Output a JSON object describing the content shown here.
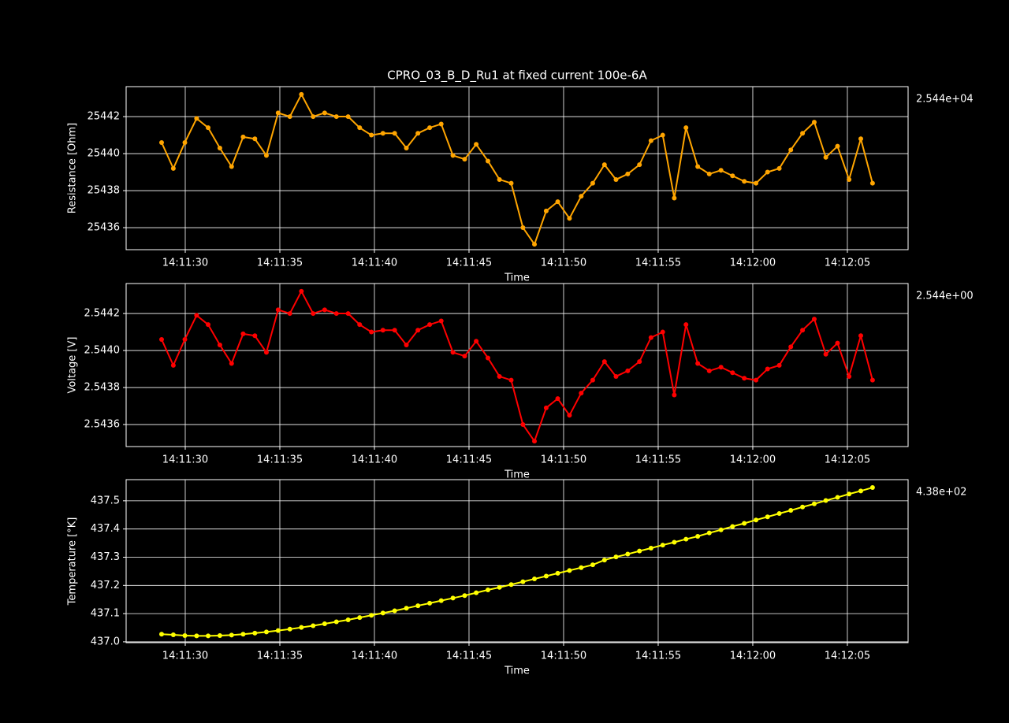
{
  "chart_data": [
    {
      "type": "line",
      "title": "CPRO_03_B_D_Ru1 at fixed current 100e-6A",
      "xlabel": "Time",
      "ylabel": "Resistance [Ohm]",
      "offset_text": "2.544e+04",
      "color": "#ffa500",
      "grid": true,
      "x": [
        51088.75,
        51089.37,
        51089.98,
        51090.6,
        51091.21,
        51091.83,
        51092.45,
        51093.06,
        51093.68,
        51094.29,
        51094.91,
        51095.53,
        51096.14,
        51096.76,
        51097.37,
        51097.99,
        51098.61,
        51099.22,
        51099.84,
        51100.45,
        51101.07,
        51101.69,
        51102.3,
        51102.92,
        51103.53,
        51104.15,
        51104.77,
        51105.38,
        51106.0,
        51106.61,
        51107.23,
        51107.85,
        51108.46,
        51109.08,
        51109.69,
        51110.31,
        51110.93,
        51111.54,
        51112.16,
        51112.77,
        51113.39,
        51114.01,
        51114.62,
        51115.24,
        51115.85,
        51116.47,
        51117.09,
        51117.7,
        51118.32,
        51118.93,
        51119.55,
        51120.17,
        51120.78,
        51121.4,
        51122.01,
        51122.63,
        51123.25,
        51123.86,
        51124.48,
        51125.09,
        51125.71,
        51126.33
      ],
      "values": [
        25440.6,
        25439.2,
        25440.6,
        25441.9,
        25441.4,
        25440.3,
        25439.3,
        25440.9,
        25440.8,
        25439.9,
        25442.2,
        25442.0,
        25443.2,
        25442.0,
        25442.2,
        25442.0,
        25442.0,
        25441.4,
        25441.0,
        25441.1,
        25441.1,
        25440.3,
        25441.1,
        25441.4,
        25441.6,
        25439.9,
        25439.7,
        25440.5,
        25439.6,
        25438.6,
        25438.4,
        25436.0,
        25435.1,
        25436.9,
        25437.4,
        25436.5,
        25437.7,
        25438.4,
        25439.4,
        25438.6,
        25438.9,
        25439.4,
        25440.7,
        25441.0,
        25437.6,
        25441.4,
        25439.3,
        25438.9,
        25439.1,
        25438.8,
        25438.5,
        25438.4,
        25439.0,
        25439.2,
        25440.2,
        25441.1,
        25441.7,
        25439.8,
        25440.4,
        25438.6,
        25440.8,
        25438.4
      ],
      "xlim": [
        51086.875,
        51128.21
      ],
      "xticks": [
        {
          "value": 51090,
          "label": "14:11:30"
        },
        {
          "value": 51095,
          "label": "14:11:35"
        },
        {
          "value": 51100,
          "label": "14:11:40"
        },
        {
          "value": 51105,
          "label": "14:11:45"
        },
        {
          "value": 51110,
          "label": "14:11:50"
        },
        {
          "value": 51115,
          "label": "14:11:55"
        },
        {
          "value": 51120,
          "label": "14:12:00"
        },
        {
          "value": 51125,
          "label": "14:12:05"
        }
      ],
      "ylim": [
        25434.81,
        25443.62
      ],
      "yticks": [
        25436,
        25438,
        25440,
        25442
      ]
    },
    {
      "type": "line",
      "xlabel": "Time",
      "ylabel": "Voltage [V]",
      "offset_text": "2.544e+00",
      "color": "#ff0000",
      "grid": true,
      "x": [
        51088.75,
        51089.37,
        51089.98,
        51090.6,
        51091.21,
        51091.83,
        51092.45,
        51093.06,
        51093.68,
        51094.29,
        51094.91,
        51095.53,
        51096.14,
        51096.76,
        51097.37,
        51097.99,
        51098.61,
        51099.22,
        51099.84,
        51100.45,
        51101.07,
        51101.69,
        51102.3,
        51102.92,
        51103.53,
        51104.15,
        51104.77,
        51105.38,
        51106.0,
        51106.61,
        51107.23,
        51107.85,
        51108.46,
        51109.08,
        51109.69,
        51110.31,
        51110.93,
        51111.54,
        51112.16,
        51112.77,
        51113.39,
        51114.01,
        51114.62,
        51115.24,
        51115.85,
        51116.47,
        51117.09,
        51117.7,
        51118.32,
        51118.93,
        51119.55,
        51120.17,
        51120.78,
        51121.4,
        51122.01,
        51122.63,
        51123.25,
        51123.86,
        51124.48,
        51125.09,
        51125.71,
        51126.33
      ],
      "values": [
        2.54406,
        2.54392,
        2.54406,
        2.54419,
        2.54414,
        2.54403,
        2.54393,
        2.54409,
        2.54408,
        2.54399,
        2.54422,
        2.5442,
        2.54432,
        2.5442,
        2.54422,
        2.5442,
        2.5442,
        2.54414,
        2.5441,
        2.54411,
        2.54411,
        2.54403,
        2.54411,
        2.54414,
        2.54416,
        2.54399,
        2.54397,
        2.54405,
        2.54396,
        2.54386,
        2.54384,
        2.5436,
        2.54351,
        2.54369,
        2.54374,
        2.54365,
        2.54377,
        2.54384,
        2.54394,
        2.54386,
        2.54389,
        2.54394,
        2.54407,
        2.5441,
        2.54376,
        2.54414,
        2.54393,
        2.54389,
        2.54391,
        2.54388,
        2.54385,
        2.54384,
        2.5439,
        2.54392,
        2.54402,
        2.54411,
        2.54417,
        2.54398,
        2.54404,
        2.54386,
        2.54408,
        2.54384
      ],
      "xlim": [
        51086.875,
        51128.21
      ],
      "xticks": [
        {
          "value": 51090,
          "label": "14:11:30"
        },
        {
          "value": 51095,
          "label": "14:11:35"
        },
        {
          "value": 51100,
          "label": "14:11:40"
        },
        {
          "value": 51105,
          "label": "14:11:45"
        },
        {
          "value": 51110,
          "label": "14:11:50"
        },
        {
          "value": 51115,
          "label": "14:11:55"
        },
        {
          "value": 51120,
          "label": "14:12:00"
        },
        {
          "value": 51125,
          "label": "14:12:05"
        }
      ],
      "ylim": [
        2.543481,
        2.544362
      ],
      "yticks": [
        2.5436,
        2.5438,
        {
          "value": 2.544,
          "label": "2.5440"
        },
        2.5442
      ]
    },
    {
      "type": "line",
      "xlabel": "Time",
      "ylabel": "Temperature [°K]",
      "offset_text": "4.38e+02",
      "color": "#ffff00",
      "grid": true,
      "x": [
        51088.75,
        51089.37,
        51089.98,
        51090.6,
        51091.21,
        51091.83,
        51092.45,
        51093.06,
        51093.68,
        51094.29,
        51094.91,
        51095.53,
        51096.14,
        51096.76,
        51097.37,
        51097.99,
        51098.61,
        51099.22,
        51099.84,
        51100.45,
        51101.07,
        51101.69,
        51102.3,
        51102.92,
        51103.53,
        51104.15,
        51104.77,
        51105.38,
        51106.0,
        51106.61,
        51107.23,
        51107.85,
        51108.46,
        51109.08,
        51109.69,
        51110.31,
        51110.93,
        51111.54,
        51112.16,
        51112.77,
        51113.39,
        51114.01,
        51114.62,
        51115.24,
        51115.85,
        51116.47,
        51117.09,
        51117.7,
        51118.32,
        51118.93,
        51119.55,
        51120.17,
        51120.78,
        51121.4,
        51122.01,
        51122.63,
        51123.25,
        51123.86,
        51124.48,
        51125.09,
        51125.71,
        51126.33
      ],
      "values": [
        437.027,
        437.025,
        437.022,
        437.021,
        437.021,
        437.022,
        437.024,
        437.027,
        437.031,
        437.035,
        437.04,
        437.045,
        437.051,
        437.057,
        437.064,
        437.071,
        437.078,
        437.086,
        437.094,
        437.102,
        437.11,
        437.119,
        437.128,
        437.137,
        437.146,
        437.155,
        437.164,
        437.174,
        437.184,
        437.193,
        437.203,
        437.213,
        437.223,
        437.233,
        437.243,
        437.253,
        437.263,
        437.273,
        437.29,
        437.301,
        437.311,
        437.322,
        437.332,
        437.343,
        437.353,
        437.364,
        437.374,
        437.386,
        437.397,
        437.409,
        437.42,
        437.432,
        437.443,
        437.455,
        437.466,
        437.478,
        437.489,
        437.501,
        437.512,
        437.524,
        437.535,
        437.547
      ],
      "xlim": [
        51086.875,
        51128.21
      ],
      "xticks": [
        {
          "value": 51090,
          "label": "14:11:30"
        },
        {
          "value": 51095,
          "label": "14:11:35"
        },
        {
          "value": 51100,
          "label": "14:11:40"
        },
        {
          "value": 51105,
          "label": "14:11:45"
        },
        {
          "value": 51110,
          "label": "14:11:50"
        },
        {
          "value": 51115,
          "label": "14:11:55"
        },
        {
          "value": 51120,
          "label": "14:12:00"
        },
        {
          "value": 51125,
          "label": "14:12:05"
        }
      ],
      "ylim": [
        436.997,
        437.575
      ],
      "yticks": [
        {
          "value": 437,
          "label": "437.0"
        },
        437.1,
        437.2,
        437.3,
        437.4,
        437.5
      ]
    }
  ]
}
